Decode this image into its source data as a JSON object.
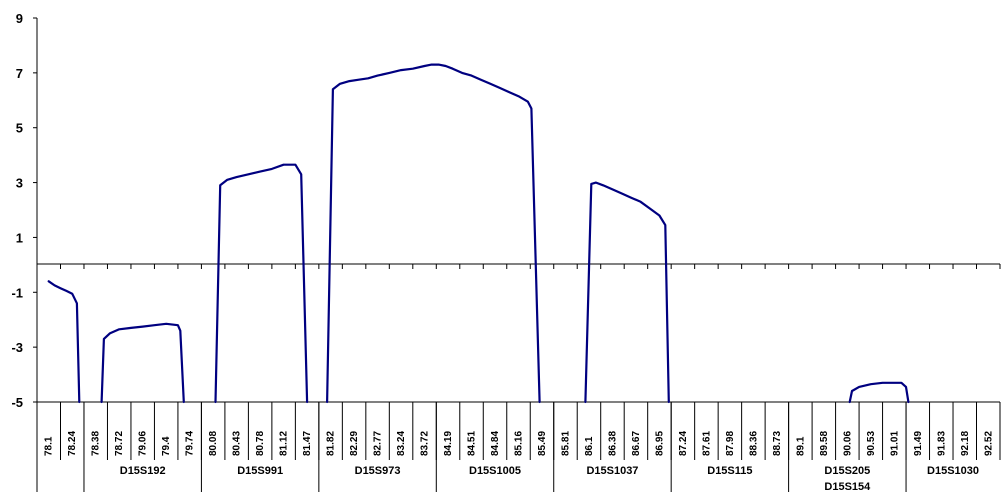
{
  "chart_data": {
    "type": "line",
    "title": "",
    "xlabel": "",
    "ylabel": "",
    "ylim": [
      -5,
      9
    ],
    "y_ticks": [
      "9",
      "7",
      "5",
      "3",
      "1",
      "-1",
      "-3",
      "-5"
    ],
    "x_tick_labels": [
      "78.1",
      "78.24",
      "78.38",
      "78.72",
      "79.06",
      "79.4",
      "79.74",
      "80.08",
      "80.43",
      "80.78",
      "81.12",
      "81.47",
      "81.82",
      "82.29",
      "82.77",
      "83.24",
      "83.72",
      "84.19",
      "84.51",
      "84.84",
      "85.16",
      "85.49",
      "85.81",
      "86.1",
      "86.38",
      "86.67",
      "86.95",
      "87.24",
      "87.61",
      "87.98",
      "88.36",
      "88.73",
      "89.1",
      "89.58",
      "90.06",
      "90.53",
      "91.01",
      "91.49",
      "91.83",
      "92.18",
      "92.52"
    ],
    "markers": [
      {
        "label": "D15S192",
        "group_start": 2,
        "group_end": 7
      },
      {
        "label": "D15S991",
        "group_start": 7,
        "group_end": 12
      },
      {
        "label": "D15S973",
        "group_start": 12,
        "group_end": 17
      },
      {
        "label": "D15S1005",
        "group_start": 17,
        "group_end": 22
      },
      {
        "label": "D15S1037",
        "group_start": 22,
        "group_end": 27
      },
      {
        "label": "D15S115",
        "group_start": 27,
        "group_end": 32
      },
      {
        "label": "D15S205",
        "label2": "D15S154",
        "group_start": 32,
        "group_end": 37
      },
      {
        "label": "D15S1030",
        "group_start": 37,
        "group_end": 41
      }
    ],
    "group_separators": [
      2,
      7,
      12,
      17,
      22,
      27,
      32,
      37
    ],
    "line_color": "#000080",
    "segments": [
      [
        [
          0.0,
          -0.6
        ],
        [
          0.25,
          -0.75
        ],
        [
          0.5,
          -0.85
        ],
        [
          0.75,
          -0.95
        ],
        [
          1.0,
          -1.05
        ],
        [
          1.2,
          -1.4
        ],
        [
          1.3,
          -5.0
        ]
      ],
      [
        [
          2.25,
          -5.0
        ],
        [
          2.35,
          -2.7
        ],
        [
          2.6,
          -2.5
        ],
        [
          3.0,
          -2.35
        ],
        [
          3.5,
          -2.3
        ],
        [
          4.0,
          -2.25
        ],
        [
          4.5,
          -2.2
        ],
        [
          5.0,
          -2.15
        ],
        [
          5.5,
          -2.2
        ],
        [
          5.6,
          -2.4
        ],
        [
          5.75,
          -5.0
        ]
      ],
      [
        [
          7.1,
          -5.0
        ],
        [
          7.3,
          2.9
        ],
        [
          7.6,
          3.1
        ],
        [
          8.0,
          3.2
        ],
        [
          8.5,
          3.3
        ],
        [
          9.0,
          3.4
        ],
        [
          9.5,
          3.5
        ],
        [
          10.0,
          3.65
        ],
        [
          10.5,
          3.65
        ],
        [
          10.75,
          3.3
        ],
        [
          11.0,
          -5.0
        ]
      ],
      [
        [
          11.85,
          -5.0
        ],
        [
          12.1,
          6.4
        ],
        [
          12.4,
          6.6
        ],
        [
          12.8,
          6.7
        ],
        [
          13.2,
          6.75
        ],
        [
          13.6,
          6.8
        ],
        [
          14.0,
          6.9
        ],
        [
          14.5,
          7.0
        ],
        [
          15.0,
          7.1
        ],
        [
          15.5,
          7.15
        ],
        [
          16.0,
          7.25
        ],
        [
          16.3,
          7.3
        ],
        [
          16.6,
          7.3
        ],
        [
          16.9,
          7.25
        ],
        [
          17.2,
          7.15
        ],
        [
          17.6,
          7.0
        ],
        [
          18.0,
          6.9
        ],
        [
          18.4,
          6.75
        ],
        [
          18.8,
          6.6
        ],
        [
          19.2,
          6.45
        ],
        [
          19.6,
          6.3
        ],
        [
          20.0,
          6.15
        ],
        [
          20.4,
          5.95
        ],
        [
          20.55,
          5.7
        ],
        [
          20.9,
          -5.0
        ]
      ],
      [
        [
          22.85,
          -5.0
        ],
        [
          23.1,
          2.95
        ],
        [
          23.3,
          3.0
        ],
        [
          23.6,
          2.9
        ],
        [
          24.0,
          2.75
        ],
        [
          24.4,
          2.6
        ],
        [
          24.8,
          2.45
        ],
        [
          25.2,
          2.3
        ],
        [
          25.6,
          2.05
        ],
        [
          26.0,
          1.8
        ],
        [
          26.25,
          1.45
        ],
        [
          26.4,
          -5.0
        ]
      ],
      [
        [
          34.1,
          -5.0
        ],
        [
          34.2,
          -4.6
        ],
        [
          34.5,
          -4.45
        ],
        [
          35.0,
          -4.35
        ],
        [
          35.5,
          -4.3
        ],
        [
          36.0,
          -4.3
        ],
        [
          36.3,
          -4.3
        ],
        [
          36.5,
          -4.45
        ],
        [
          36.6,
          -5.0
        ]
      ]
    ]
  }
}
